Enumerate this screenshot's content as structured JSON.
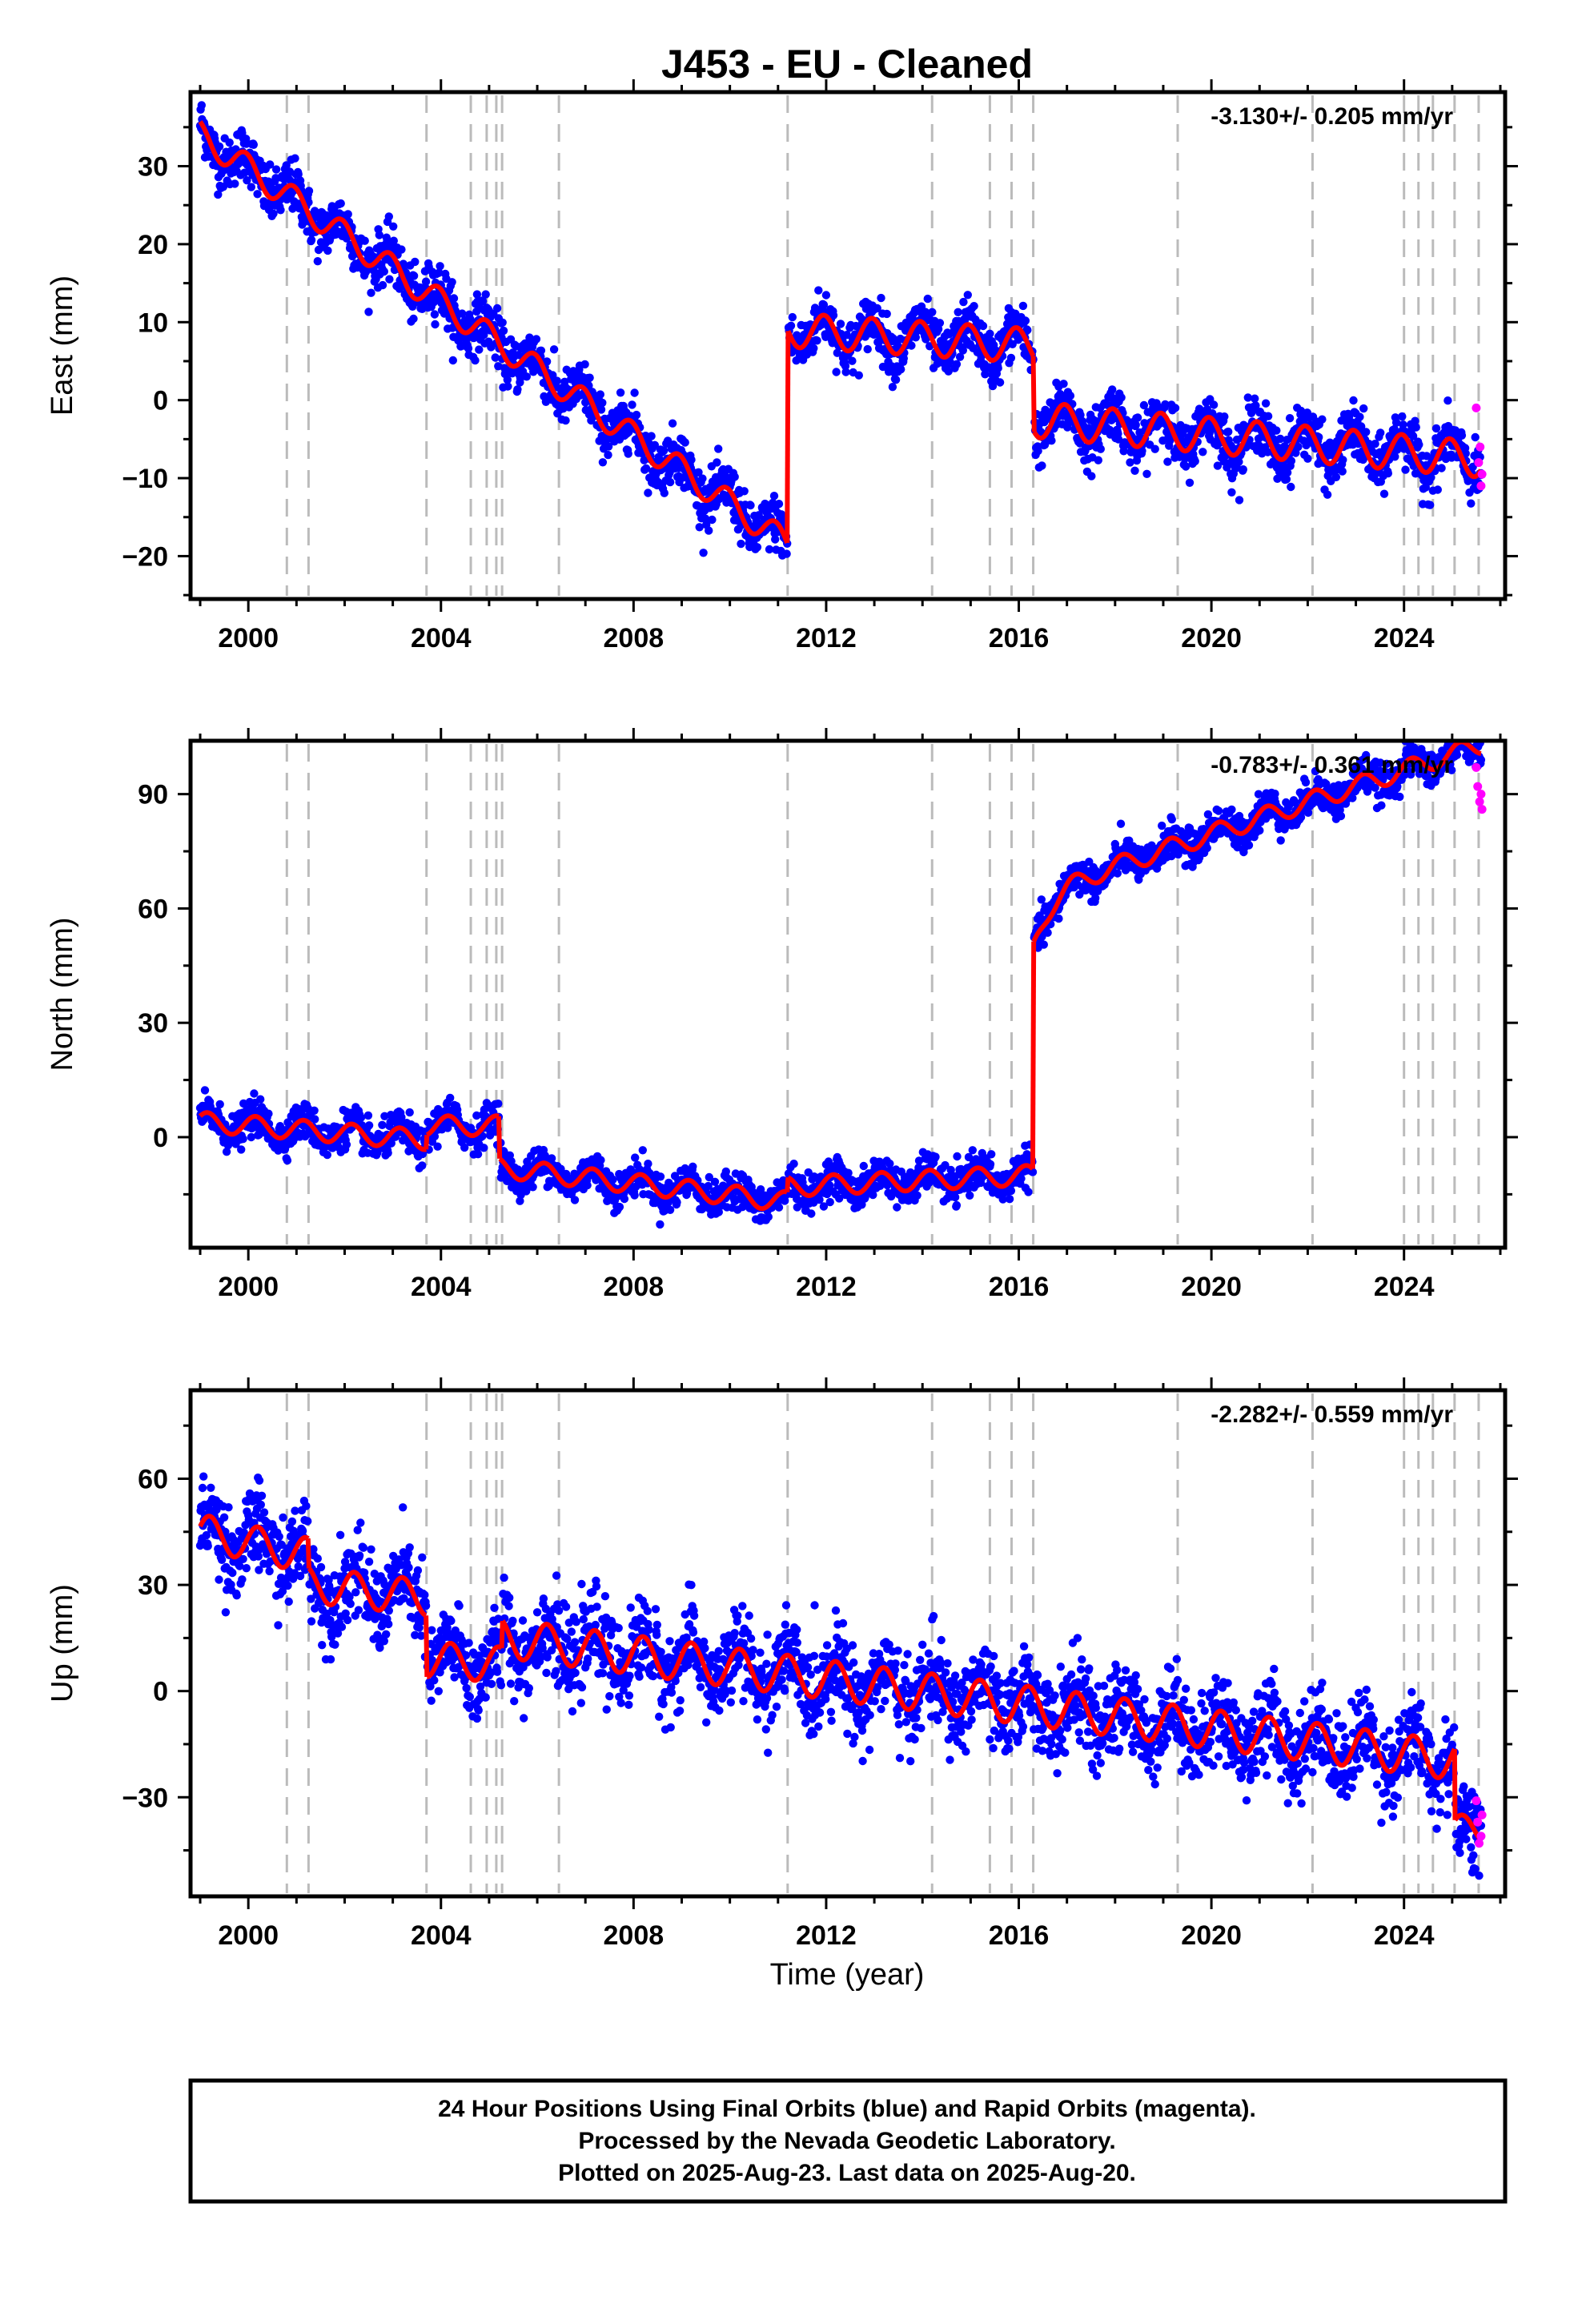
{
  "figure": {
    "title": "J453  - EU - Cleaned",
    "xlabel": "Time (year)",
    "footer": [
      "24 Hour Positions Using Final Orbits (blue) and Rapid Orbits (magenta).",
      "Processed by the Nevada Geodetic Laboratory.",
      "Plotted on 2025-Aug-23. Last data on 2025-Aug-20."
    ],
    "colors": {
      "final": "#0000ff",
      "rapid": "#ff00ff",
      "model": "#ff0000",
      "steps": "#bbbbbb"
    }
  },
  "chart_data": [
    {
      "type": "scatter",
      "ylabel": "East (mm)",
      "rate": "-3.130+/- 0.205 mm/yr",
      "xlim": [
        1998.8,
        2026.1
      ],
      "ylim": [
        -25.5,
        39.5
      ],
      "xticks": [
        2000,
        2004,
        2008,
        2012,
        2016,
        2020,
        2024
      ],
      "yticks": [
        -20,
        -10,
        0,
        10,
        20,
        30
      ],
      "step_lines": [
        2000.8,
        2001.25,
        2003.7,
        2004.62,
        2004.95,
        2005.15,
        2005.27,
        2006.45,
        2011.2,
        2014.2,
        2015.4,
        2015.85,
        2016.3,
        2019.3,
        2022.1,
        2024.0,
        2024.3,
        2024.6,
        2025.05,
        2025.55
      ],
      "model_segments": [
        {
          "t0": 1999.0,
          "t1": 2011.19,
          "y0": 34.0,
          "rate": -4.3,
          "amp": 1.8,
          "phase": 0.3
        },
        {
          "t0": 2011.21,
          "t1": 2016.3,
          "y0": 9.0,
          "rate": -0.4,
          "amp": 2.2,
          "phase": 0.3
        },
        {
          "t0": 2016.32,
          "t1": 2025.6,
          "y0": -2.5,
          "rate": -0.55,
          "amp": 2.3,
          "phase": 0.3
        }
      ],
      "scatter_sigma": 1.7,
      "rapid_points": {
        "x": [
          2025.5,
          2025.55,
          2025.58,
          2025.6,
          2025.62
        ],
        "y": [
          -1.0,
          -8.0,
          -6.0,
          -11.0,
          -9.5
        ]
      }
    },
    {
      "type": "scatter",
      "ylabel": "North (mm)",
      "rate": "-0.783+/- 0.361 mm/yr",
      "xlim": [
        1998.8,
        2026.1
      ],
      "ylim": [
        -29,
        104
      ],
      "xticks": [
        2000,
        2004,
        2008,
        2012,
        2016,
        2020,
        2024
      ],
      "yticks": [
        0,
        30,
        60,
        90
      ],
      "step_lines": [
        2000.8,
        2001.25,
        2003.7,
        2004.62,
        2004.95,
        2005.15,
        2005.27,
        2006.45,
        2011.2,
        2014.2,
        2015.4,
        2015.85,
        2016.3,
        2019.3,
        2022.1,
        2024.0,
        2024.3,
        2024.6,
        2025.05,
        2025.55
      ],
      "model_segments": [
        {
          "t0": 1999.0,
          "t1": 2003.69,
          "y0": 4.0,
          "rate": -1.0,
          "amp": 2.6,
          "phase": 0.1
        },
        {
          "t0": 2003.71,
          "t1": 2005.2,
          "y0": 3.0,
          "rate": 0.0,
          "amp": 2.6,
          "phase": 0.1
        },
        {
          "t0": 2005.22,
          "t1": 2011.19,
          "y0": -8.0,
          "rate": -1.5,
          "amp": 2.6,
          "phase": 0.1
        },
        {
          "t0": 2011.21,
          "t1": 2016.29,
          "y0": -13.0,
          "rate": 0.6,
          "amp": 2.6,
          "phase": 0.1
        },
        {
          "t0": 2016.31,
          "t1": 2025.6,
          "y0": 50.0,
          "rate": 4.2,
          "amp": 2.5,
          "phase": 0.1,
          "post_amp": 14.0,
          "post_tau": 0.35
        }
      ],
      "scatter_sigma": 2.3,
      "rapid_points": {
        "x": [
          2025.5,
          2025.53,
          2025.57,
          2025.6,
          2025.62
        ],
        "y": [
          97.0,
          92.0,
          88.0,
          90.0,
          86.0
        ]
      }
    },
    {
      "type": "scatter",
      "ylabel": "Up (mm)",
      "rate": "-2.282+/- 0.559 mm/yr",
      "xlim": [
        1998.8,
        2026.1
      ],
      "ylim": [
        -58,
        85
      ],
      "xticks": [
        2000,
        2004,
        2008,
        2012,
        2016,
        2020,
        2024
      ],
      "yticks": [
        -30,
        0,
        30,
        60
      ],
      "step_lines": [
        2000.8,
        2001.25,
        2003.7,
        2004.62,
        2004.95,
        2005.15,
        2005.27,
        2006.45,
        2011.2,
        2014.2,
        2015.4,
        2015.85,
        2016.3,
        2019.3,
        2022.1,
        2024.0,
        2024.3,
        2024.6,
        2025.05,
        2025.55
      ],
      "model_segments": [
        {
          "t0": 1999.0,
          "t1": 2001.24,
          "y0": 45.0,
          "rate": -3.0,
          "amp": 5.0,
          "phase": 0.05
        },
        {
          "t0": 2001.26,
          "t1": 2003.69,
          "y0": 30.0,
          "rate": -1.5,
          "amp": 5.0,
          "phase": 0.05
        },
        {
          "t0": 2003.71,
          "t1": 2005.26,
          "y0": 9.0,
          "rate": -1.0,
          "amp": 5.0,
          "phase": 0.05
        },
        {
          "t0": 2005.28,
          "t1": 2025.05,
          "y0": 15.0,
          "rate": -1.75,
          "amp": 5.5,
          "phase": 0.05
        },
        {
          "t0": 2025.06,
          "t1": 2025.6,
          "y0": -39.0,
          "rate": 0.0,
          "amp": 4.0,
          "phase": 0.05
        }
      ],
      "scatter_sigma": 6.0,
      "rapid_points": {
        "x": [
          2025.5,
          2025.53,
          2025.56,
          2025.6,
          2025.62
        ],
        "y": [
          -31.0,
          -37.0,
          -43.0,
          -41.0,
          -35.0
        ]
      }
    }
  ]
}
